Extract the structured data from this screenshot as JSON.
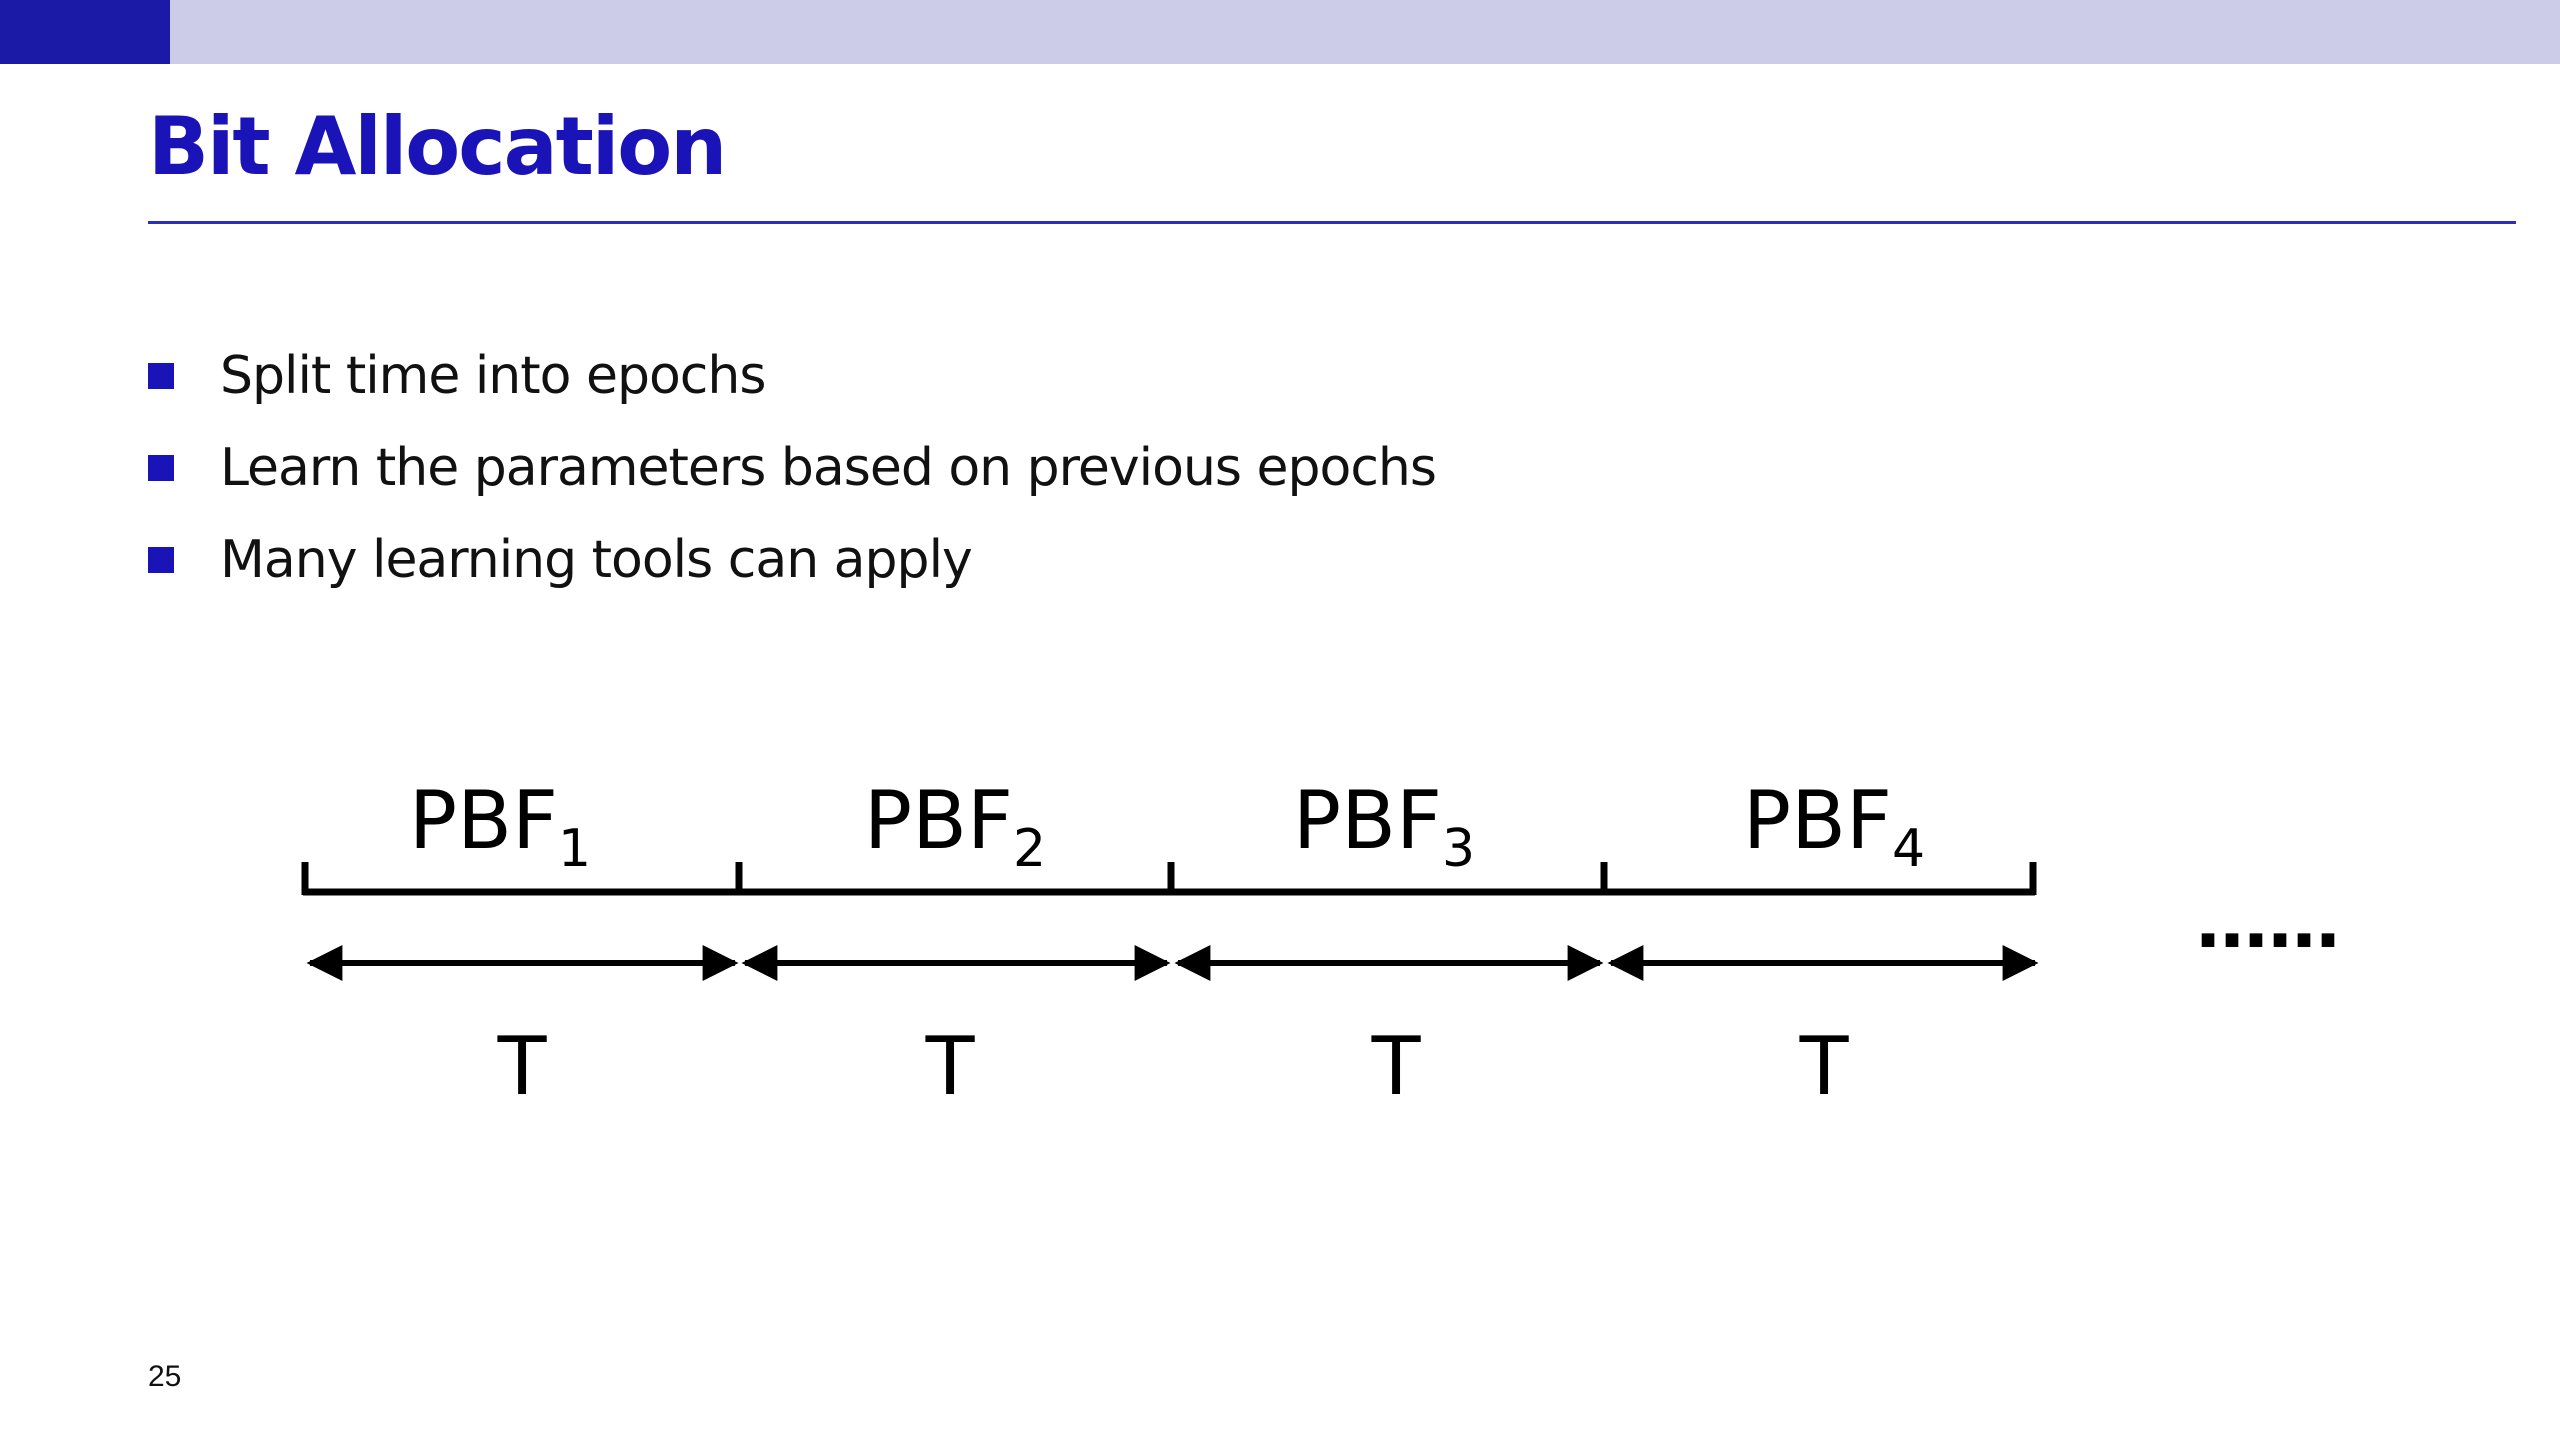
{
  "slide": {
    "title": "Bit Allocation",
    "bullets": [
      "Split time into epochs",
      "Learn the parameters based on previous epochs",
      "Many learning tools can apply"
    ],
    "page_number": "25"
  },
  "diagram": {
    "segments": [
      {
        "label": "PBF",
        "subscript": "1",
        "period": "T"
      },
      {
        "label": "PBF",
        "subscript": "2",
        "period": "T"
      },
      {
        "label": "PBF",
        "subscript": "3",
        "period": "T"
      },
      {
        "label": "PBF",
        "subscript": "4",
        "period": "T"
      }
    ],
    "continuation": "……"
  },
  "colors": {
    "accent": "#1a14b8",
    "top_bar": "#cccce8",
    "top_bar_accent": "#1a1aa6"
  }
}
